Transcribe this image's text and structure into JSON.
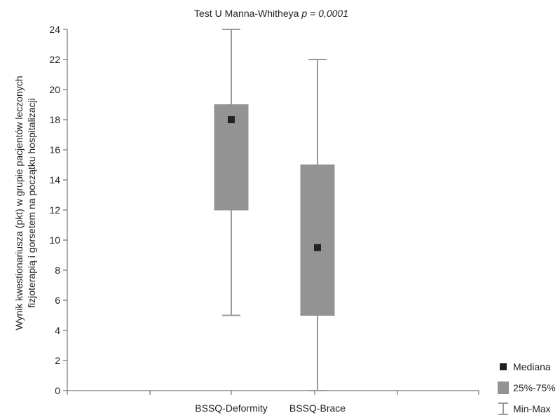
{
  "chart_data": {
    "type": "boxplot",
    "title": "Test U Manna-Whitheya",
    "title_stat": "p = 0,0001",
    "ylabel_line1": "Wynik kwestionariusza (pkt) w grupie pacjentów leczonych",
    "ylabel_line2": "fizjoterapią i gorsetem na początku hospitalizacji",
    "ylim": [
      0,
      24
    ],
    "yticks": [
      "0",
      "2",
      "4",
      "6",
      "8",
      "10",
      "12",
      "14",
      "16",
      "18",
      "20",
      "22",
      "24"
    ],
    "categories": [
      "BSSQ-Deformity",
      "BSSQ-Brace"
    ],
    "boxes": [
      {
        "category": "BSSQ-Deformity",
        "min": 5,
        "q1": 12,
        "median": 18,
        "q3": 19,
        "max": 24
      },
      {
        "category": "BSSQ-Brace",
        "min": 0,
        "q1": 5,
        "median": 9.5,
        "q3": 15,
        "max": 22
      }
    ],
    "legend": {
      "position": "bottom-right",
      "items": [
        {
          "label": "Mediana",
          "marker": "square"
        },
        {
          "label": "25%-75%",
          "marker": "box"
        },
        {
          "label": "Min-Max",
          "marker": "whisker"
        }
      ]
    },
    "colors": {
      "box_fill": "#939393",
      "whisker": "#999999",
      "median": "#222222",
      "axis": "#555555"
    }
  }
}
